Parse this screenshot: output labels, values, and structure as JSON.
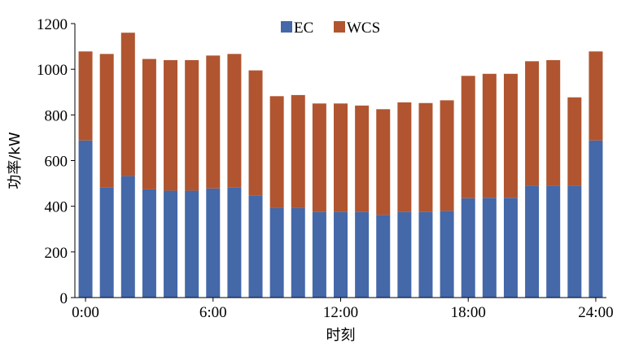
{
  "chart_data": {
    "type": "bar",
    "stacked": true,
    "xlabel": "时刻",
    "ylabel": "功率/kW",
    "ylim": [
      0,
      1200
    ],
    "yticks": [
      0,
      200,
      400,
      600,
      800,
      1000,
      1200
    ],
    "xtick_labels": [
      "0:00",
      "6:00",
      "12:00",
      "18:00",
      "24:00"
    ],
    "xtick_positions": [
      0,
      6,
      12,
      18,
      24
    ],
    "grid": false,
    "legend_position": "top-center",
    "x": [
      0,
      1,
      2,
      3,
      4,
      5,
      6,
      7,
      8,
      9,
      10,
      11,
      12,
      13,
      14,
      15,
      16,
      17,
      18,
      19,
      20,
      21,
      22,
      23,
      24
    ],
    "series": [
      {
        "name": "EC",
        "color": "#4468A8",
        "values": [
          688,
          482,
          532,
          474,
          468,
          468,
          478,
          482,
          448,
          392,
          392,
          375,
          375,
          375,
          362,
          375,
          375,
          380,
          435,
          437,
          437,
          490,
          490,
          490,
          688
        ]
      },
      {
        "name": "WCS",
        "color": "#B05530",
        "values": [
          390,
          585,
          628,
          571,
          572,
          572,
          582,
          585,
          547,
          490,
          495,
          475,
          475,
          466,
          463,
          480,
          477,
          484,
          536,
          543,
          543,
          545,
          550,
          387,
          390
        ]
      }
    ]
  }
}
